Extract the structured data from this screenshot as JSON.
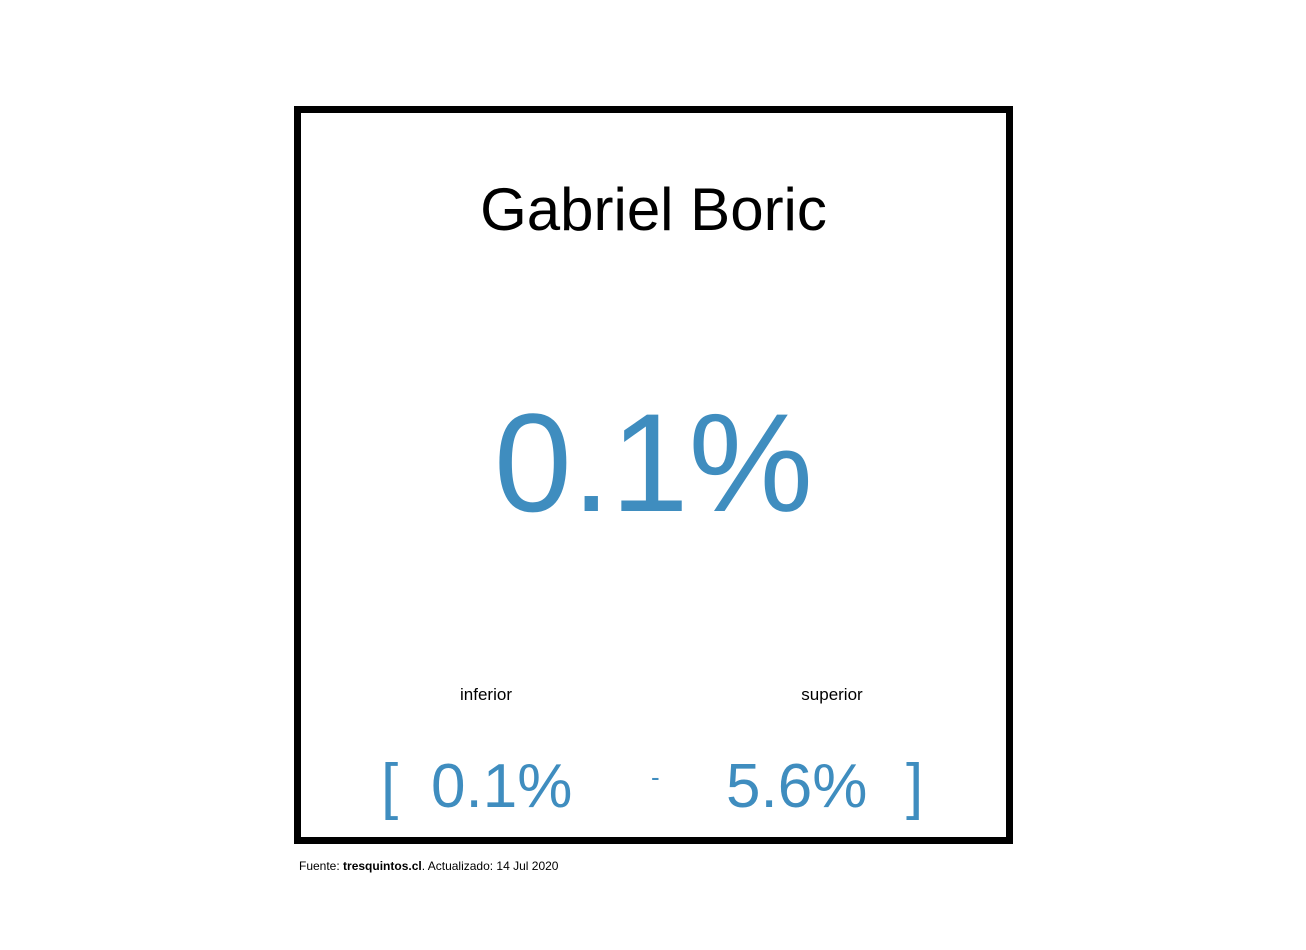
{
  "card": {
    "candidate_name": "Gabriel Boric",
    "main_value": "0.1%",
    "lower_label": "inferior",
    "upper_label": "superior",
    "bracket_open": "[",
    "lower_value": "0.1%",
    "separator": "-",
    "upper_value": "5.6%",
    "bracket_close": "]"
  },
  "footer": {
    "source_prefix": "Fuente: ",
    "source_name": "tresquintos.cl",
    "updated_text": ". Actualizado: 14 Jul 2020"
  },
  "colors": {
    "accent": "#3f8dbf",
    "border": "#000000",
    "text": "#000000",
    "background": "#ffffff"
  }
}
